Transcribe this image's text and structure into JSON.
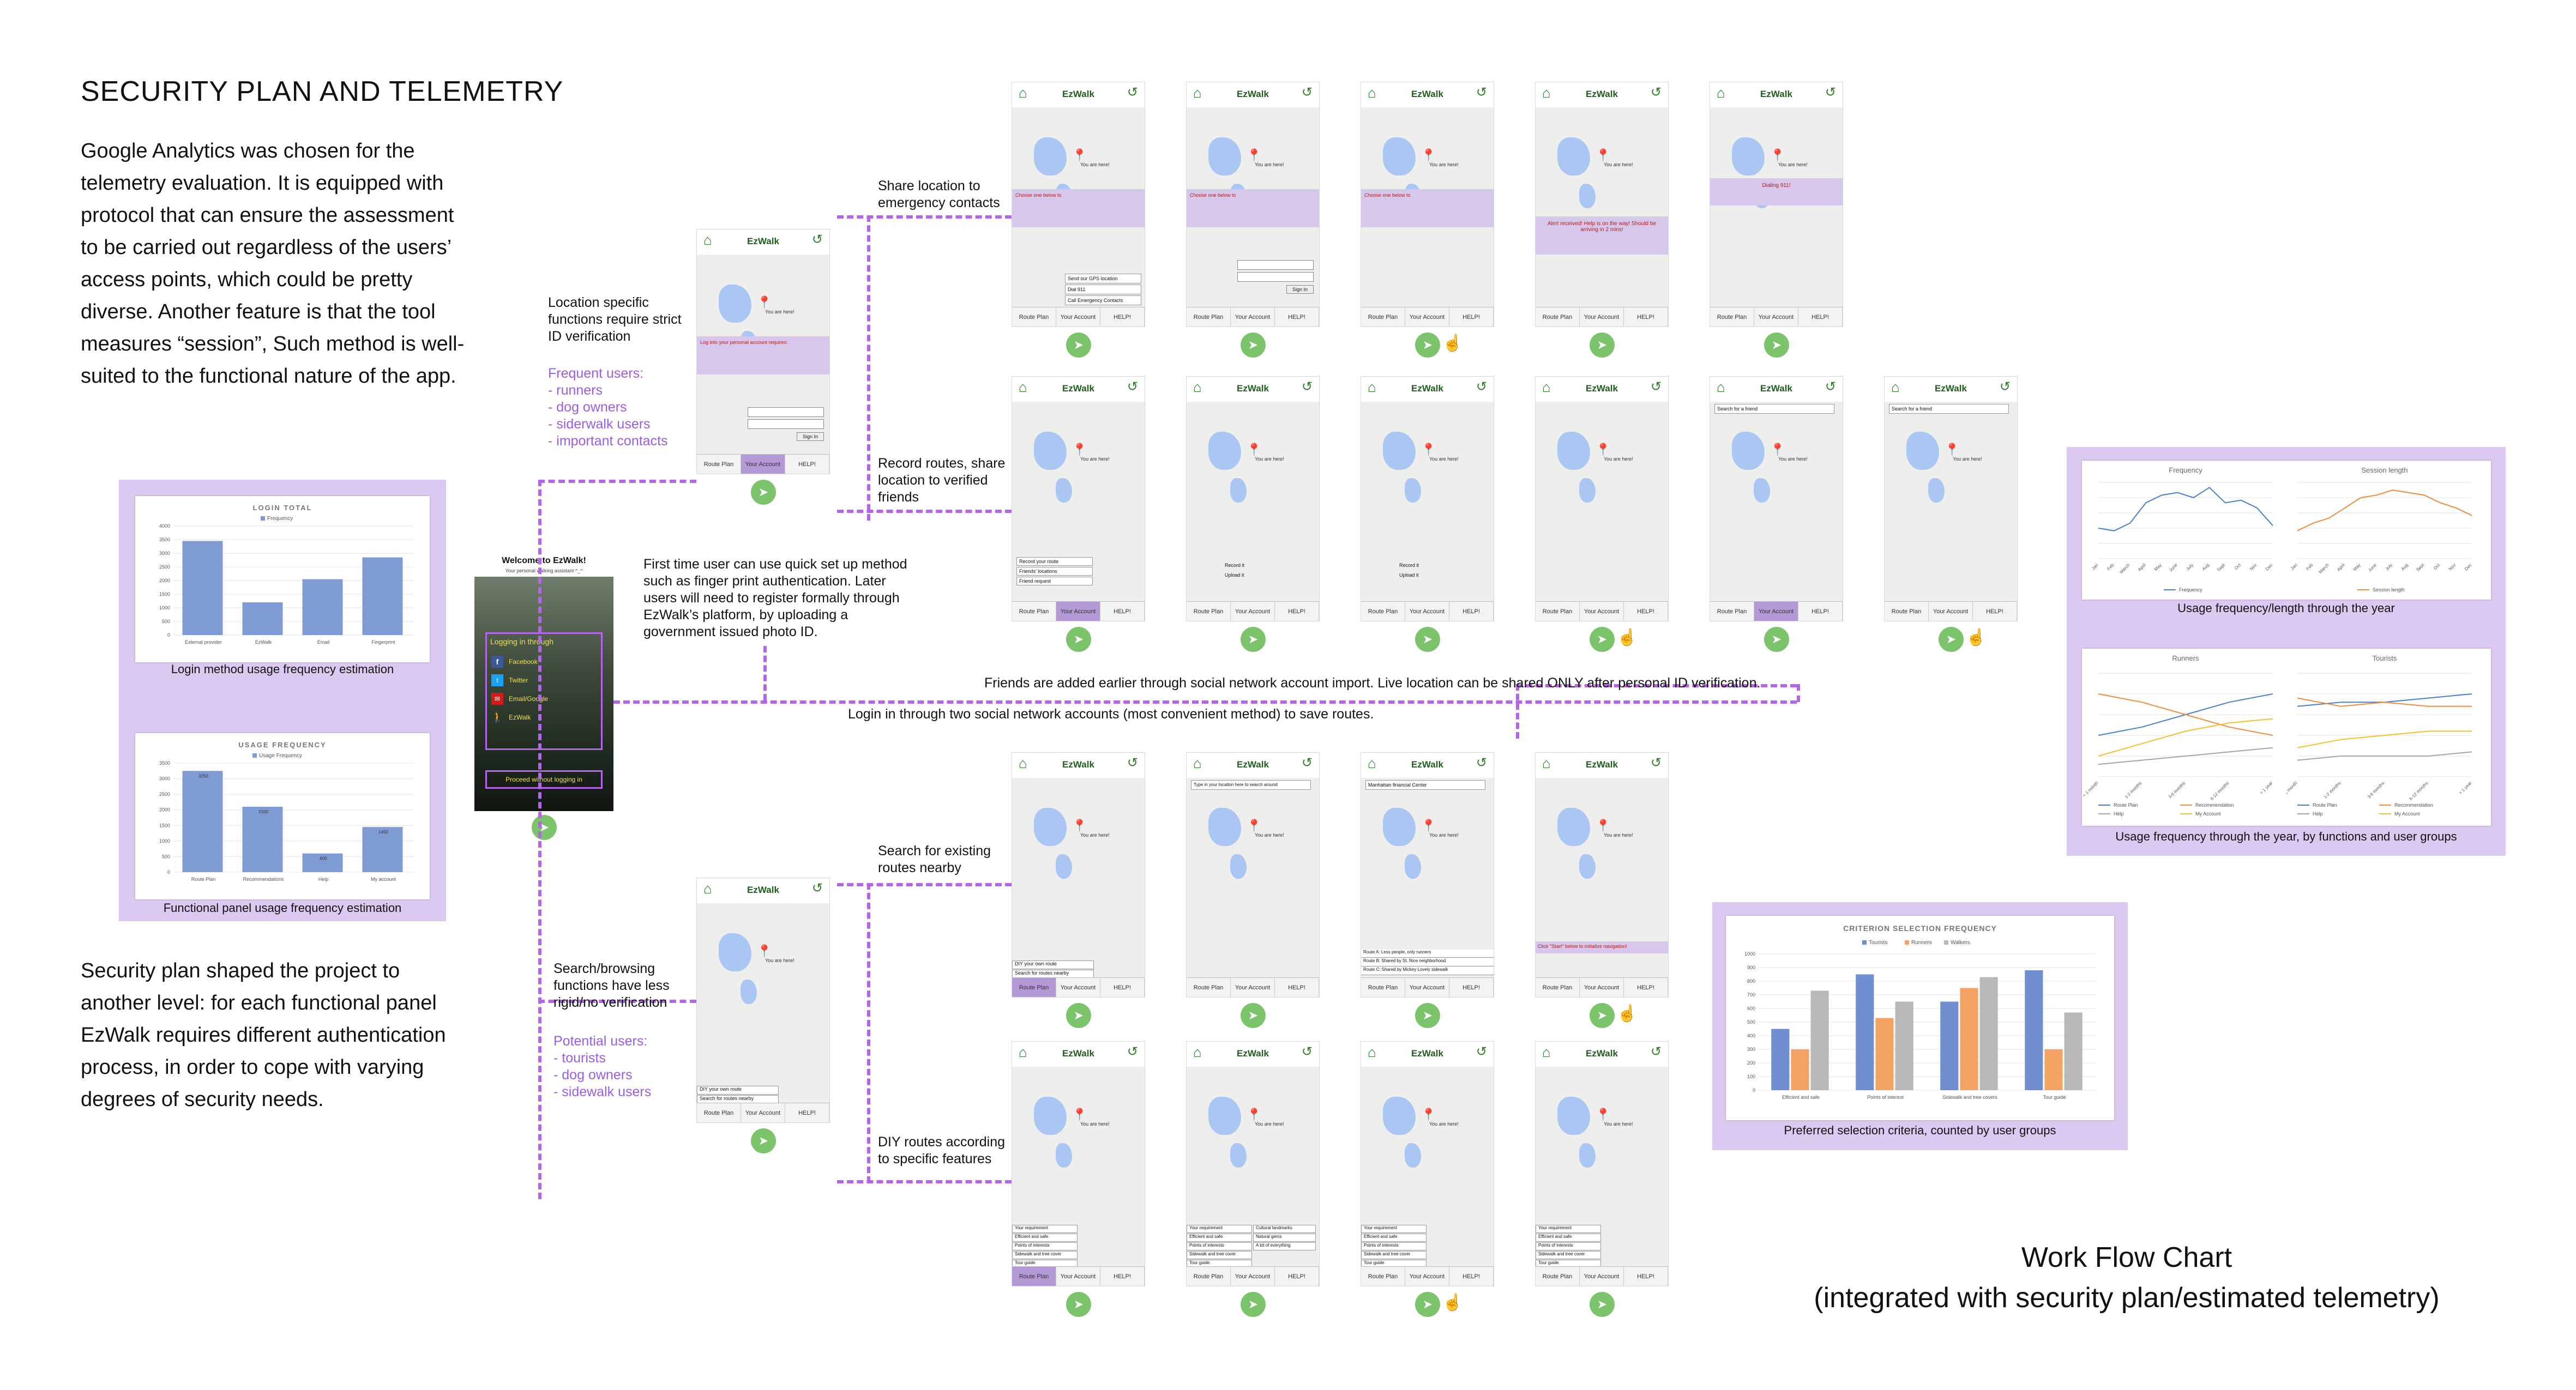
{
  "left": {
    "title": "SECURITY PLAN AND TELEMETRY",
    "intro": "Google Analytics was chosen for the telemetry evaluation. It is equipped with protocol that can ensure the assessment to be carried out regardless of the users’ access points, which could be pretty diverse. Another feature is that the tool measures “session”, Such method is well-suited to the functional nature of the app.",
    "outro": "Security plan shaped the project to another level: for each functional panel EzWalk requires different authentication process, in order to cope with varying degrees of security needs."
  },
  "login_card": {
    "title": "LOGIN TOTAL",
    "legend": "Frequency",
    "caption": "Login method usage frequency estimation"
  },
  "usage_card": {
    "title": "USAGE FREQUENCY",
    "legend": "Usage Frequency",
    "caption": "Functional panel usage frequency estimation"
  },
  "annotations": {
    "location_specific": "Location specific functions require strict ID verification",
    "frequent_users_title": "Frequent users:",
    "frequent_users": [
      "- runners",
      "- dog owners",
      "- siderwalk users",
      "- important contacts"
    ],
    "first_time": "First time user can use quick set up method such as finger print authentication. Later users will need to register formally through EzWalk’s platform, by uploading a government issued photo ID.",
    "share_location": "Share location to emergency contacts",
    "record_routes": "Record routes, share location to verified friends",
    "friends_added": "Friends are added earlier through social network account import. Live location can be shared ONLY after personal ID verification.",
    "login_two": "Login in through two social network accounts (most convenient method) to save routes.",
    "search_browsing": "Search/browsing functions have less rigid/no verification",
    "potential_users_title": "Potential users:",
    "potential_users": [
      "- tourists",
      "- dog owners",
      "- sidewalk users"
    ],
    "search_existing": "Search for existing routes nearby",
    "diy_routes": "DIY routes according to specific features"
  },
  "welcome": {
    "title": "Welcome to EzWalk!",
    "subtitle": "Your personal walking assistant ^_^",
    "logging_in": "Logging in through",
    "options": [
      "Facebook",
      "Twitter",
      "Email/Google",
      "EzWalk"
    ],
    "proceed": "Proceed without logging in"
  },
  "phone": {
    "brand": "EzWalk",
    "home": "Home",
    "go_back": "Go back",
    "you_are_here": "You are here!",
    "nav": [
      "Route Plan",
      "Your Account",
      "HELP!"
    ],
    "share_prompt": "Choose one below to",
    "log_prompt": "Log into your personal account requires:",
    "search_placeholder": "Type in your location here to search around",
    "alert": "Alert received! Help is on the way! Should be arriving in 2 mins!",
    "dialing": "Dialing 911!",
    "search_friend": "Search for a friend",
    "manhattan": "Manhattan financial Center",
    "click_start": "Click \"Start\" below to initialize navigation!",
    "route_list": [
      "Route A: Less people, only runners",
      "Route B: Shared by St. Nice neighborhood",
      "Route C: Shared by Mickey Lovely sidewalk"
    ],
    "requirements": [
      "Your requirement",
      "Efficient and safe",
      "Points of interests",
      "Sidewalk and tree cover",
      "Tour guide"
    ],
    "req_options": [
      "Cultural landmarks",
      "Natural gems",
      "A bit of everything"
    ],
    "diy": "DIY your own route",
    "search_routes": "Search for routes nearby",
    "record_options": [
      "Record your route",
      "Friends' locations",
      "Friend request"
    ],
    "recording": [
      "Record it",
      "Upload it"
    ],
    "sign_in": "Sign In",
    "emergency_options": [
      "Send our GPS location",
      "Dial 911",
      "Call Emergency Contacts"
    ]
  },
  "right_panel": {
    "freq_title": "Frequency",
    "session_title": "Session length",
    "freq_legend": "Frequency",
    "session_legend": "Session length",
    "caption1": "Usage frequency/length through the year",
    "runners_title": "Runners",
    "tourists_title": "Tourists",
    "months": [
      "Jan",
      "Feb",
      "March",
      "April",
      "May",
      "June",
      "July",
      "Aug",
      "Sept",
      "Oct",
      "Nov",
      "Dec"
    ],
    "periods": [
      "< 1 month",
      "1-2 months",
      "3-6 months",
      "6-12 months",
      "> 1 year"
    ],
    "series_legend": [
      "Route Plan",
      "Recommendation",
      "Help",
      "My Account"
    ],
    "caption2": "Usage frequency through the year, by functions and user groups"
  },
  "criterion": {
    "title": "CRITERION SELECTION FREQUENCY",
    "legend": [
      "Tourists",
      "Runners",
      "Walkers"
    ],
    "caption": "Preferred selection criteria, counted by user groups"
  },
  "workflow": {
    "line1": "Work Flow Chart",
    "line2": "(integrated with security plan/estimated telemetry)"
  },
  "colors": {
    "purple_panel": "#dcc9f2",
    "dash": "#b566e8",
    "bar_blue": "#7f9bd4",
    "line_blue": "#4a7fd0",
    "line_orange": "#f08c3a",
    "line_gray": "#a5a5a5",
    "line_yellow": "#f2c12e",
    "green": "#2e7d2e"
  },
  "chart_data": [
    {
      "type": "bar",
      "title": "LOGIN TOTAL",
      "categories": [
        "External provider",
        "EzWalk",
        "Email",
        "Fingerprint"
      ],
      "series": [
        {
          "name": "Frequency",
          "values": [
            3450,
            1200,
            2050,
            2850
          ]
        }
      ],
      "ylim": [
        0,
        4000
      ],
      "yticks": [
        0,
        500,
        1000,
        1500,
        2000,
        2500,
        3000,
        3500,
        4000
      ]
    },
    {
      "type": "bar",
      "title": "USAGE FREQUENCY",
      "categories": [
        "Route Plan",
        "Recommendations",
        "Help",
        "My account"
      ],
      "series": [
        {
          "name": "Usage Frequency",
          "values": [
            3250,
            2100,
            600,
            1450
          ]
        }
      ],
      "data_labels": [
        "3250",
        "2100",
        "600",
        "1450"
      ],
      "ylim": [
        0,
        3500
      ],
      "yticks": [
        0,
        500,
        1000,
        1500,
        2000,
        2500,
        3000,
        3500
      ]
    },
    {
      "type": "line",
      "title": "Frequency",
      "x": [
        "Jan",
        "Feb",
        "March",
        "April",
        "May",
        "June",
        "July",
        "Aug",
        "Sept",
        "Oct",
        "Nov",
        "Dec"
      ],
      "series": [
        {
          "name": "Frequency",
          "values": [
            12,
            11,
            14,
            22,
            25,
            26,
            24,
            28,
            22,
            23,
            20,
            13
          ]
        }
      ],
      "ylim": [
        0,
        30
      ]
    },
    {
      "type": "line",
      "title": "Session length",
      "x": [
        "Jan",
        "Feb",
        "March",
        "April",
        "May",
        "June",
        "July",
        "Aug",
        "Sept",
        "Oct",
        "Nov",
        "Dec"
      ],
      "series": [
        {
          "name": "Session length",
          "values": [
            11,
            14,
            16,
            20,
            24,
            25,
            27,
            26,
            25,
            22,
            20,
            17
          ]
        }
      ],
      "ylim": [
        0,
        30
      ]
    },
    {
      "type": "line",
      "title": "Runners",
      "x": [
        "< 1 month",
        "1-2 months",
        "3-6 months",
        "6-12 months",
        "> 1 year"
      ],
      "series": [
        {
          "name": "Route Plan",
          "values": [
            10,
            12,
            15,
            18,
            20
          ]
        },
        {
          "name": "Recommendation",
          "values": [
            20,
            18,
            15,
            12,
            10
          ]
        },
        {
          "name": "Help",
          "values": [
            3,
            4,
            5,
            6,
            7
          ]
        },
        {
          "name": "My Account",
          "values": [
            5,
            8,
            11,
            13,
            14
          ]
        }
      ],
      "ylim": [
        0,
        25
      ]
    },
    {
      "type": "line",
      "title": "Tourists",
      "x": [
        "< 1 month",
        "1-2 months",
        "3-6 months",
        "6-12 months",
        "> 1 year"
      ],
      "series": [
        {
          "name": "Route Plan",
          "values": [
            17,
            18,
            18,
            19,
            20
          ]
        },
        {
          "name": "Recommendation",
          "values": [
            19,
            17,
            18,
            17,
            17
          ]
        },
        {
          "name": "Help",
          "values": [
            4,
            5,
            5,
            5,
            6
          ]
        },
        {
          "name": "My Account",
          "values": [
            7,
            9,
            10,
            11,
            11
          ]
        }
      ],
      "ylim": [
        0,
        25
      ]
    },
    {
      "type": "bar",
      "title": "CRITERION SELECTION FREQUENCY",
      "categories": [
        "Efficient and safe",
        "Points of interest",
        "Sidewalk and tree covers",
        "Tour guide"
      ],
      "series": [
        {
          "name": "Tourists",
          "values": [
            450,
            850,
            650,
            880
          ]
        },
        {
          "name": "Runners",
          "values": [
            300,
            530,
            750,
            300
          ]
        },
        {
          "name": "Walkers",
          "values": [
            730,
            650,
            830,
            570
          ]
        }
      ],
      "ylim": [
        0,
        1000
      ],
      "yticks": [
        0,
        100,
        200,
        300,
        400,
        500,
        600,
        700,
        800,
        900,
        1000
      ]
    }
  ]
}
